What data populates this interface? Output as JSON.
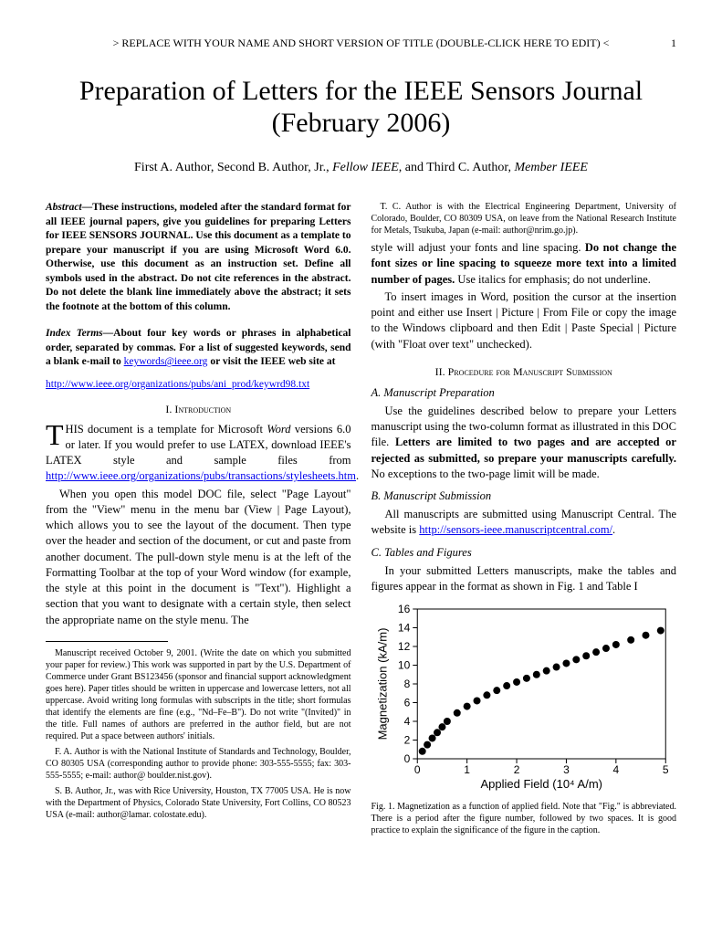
{
  "header": {
    "text": "> REPLACE WITH YOUR NAME AND SHORT VERSION OF TITLE (DOUBLE-CLICK HERE TO EDIT) <",
    "page": "1"
  },
  "title": "Preparation of Letters for the IEEE Sensors Journal (February 2006)",
  "authors": {
    "a1": "First A. Author, Second B. Author, Jr., ",
    "a2": "Fellow IEEE",
    "a3": ", and Third C. Author, ",
    "a4": "Member IEEE"
  },
  "abstract": {
    "label": "Abstract",
    "dash": "—",
    "text": "These instructions, modeled after the standard format for all IEEE journal papers, give you guidelines for preparing Letters for IEEE SENSORS JOURNAL. Use this document as a template to prepare your manuscript if you are using Microsoft Word 6.0. Otherwise, use this document as an instruction set. Define all symbols used in the abstract. Do not cite references in the abstract. Do not delete the blank line immediately above the abstract; it sets the footnote at the bottom of this column."
  },
  "index_terms": {
    "label": "Index Terms",
    "dash": "—",
    "text": "About four key words or phrases in alphabetical order, separated by commas. For a list of suggested keywords, send a blank e-mail to ",
    "email": "keywords@ieee.org",
    "text2": " or visit the IEEE web site at",
    "url": "http://www.ieee.org/organizations/pubs/ani_prod/keywrd98.txt"
  },
  "sec1": {
    "head": "I.   Introduction",
    "p1a": "HIS document is a template for Microsoft ",
    "p1b": "Word",
    "p1c": " versions 6.0 or later. If you would prefer to use LATEX, download IEEE's LATEX style and sample files from ",
    "link1": "http://www.ieee.org/organizations/pubs/transactions/stylesheets.htm",
    "p1d": ".",
    "p2": "When you open this model DOC file, select \"Page Layout\" from the \"View\" menu in the menu bar (View | Page Layout), which allows you to see the layout of the document. Then type over the header and section of the document, or cut and paste from another document. The pull-down style menu is at the left of the Formatting Toolbar at the top of your Word window (for example, the style at this point in the document is \"Text\"). Highlight a section that you want to designate with a certain style, then select the appropriate name on the style menu. The"
  },
  "footnotes": {
    "f1": "Manuscript received October 9, 2001. (Write the date on which you submitted your paper for review.) This work was supported in part by the U.S. Department of Commerce under Grant BS123456 (sponsor and financial support acknowledgment goes here). Paper titles should be written in uppercase and lowercase letters, not all uppercase. Avoid writing long formulas with subscripts in the title; short formulas that identify the elements are fine (e.g., \"Nd–Fe–B\"). Do not write \"(Invited)\" in the title. Full names of authors are preferred in the author field, but are not required. Put a space between authors' initials.",
    "f2": "F. A. Author is with the National Institute of Standards and Technology, Boulder, CO 80305 USA (corresponding author to provide phone: 303-555-5555; fax: 303-555-5555; e-mail: author@ boulder.nist.gov).",
    "f3": "S. B. Author, Jr., was with Rice University, Houston, TX 77005 USA. He is now with the Department of Physics, Colorado State University, Fort Collins, CO 80523 USA (e-mail: author@lamar. colostate.edu).",
    "f4": "T. C. Author is with the Electrical Engineering Department, University of Colorado, Boulder, CO 80309 USA, on leave from the National Research Institute for Metals, Tsukuba, Japan (e-mail: author@nrim.go.jp)."
  },
  "col2": {
    "p1a": "style will adjust your fonts and line spacing. ",
    "p1b": "Do not change the font sizes or line spacing to squeeze more text into a limited number of pages.",
    "p1c": " Use italics for emphasis; do not underline.",
    "p2": "To insert images in Word, position the cursor at the insertion point and either use Insert | Picture | From File or copy the image to the Windows clipboard and then Edit | Paste Special | Picture (with \"Float over text\" unchecked)."
  },
  "sec2": {
    "head": "II.   Procedure for Manuscript Submission",
    "subA": "A.  Manuscript Preparation",
    "pA1a": "Use the guidelines described below to prepare your Letters manuscript using the two-column format as illustrated in this DOC file.  ",
    "pA1b": "Letters are limited to two pages and are accepted or rejected as submitted, so prepare your manuscripts carefully.",
    "pA1c": " No exceptions to the two-page limit will be made.",
    "subB": "B.  Manuscript Submission",
    "pB1a": "All manuscripts are submitted using Manuscript Central. The website is ",
    "pB1link": "http://sensors-ieee.manuscriptcentral.com/",
    "pB1b": ".",
    "subC": "C.  Tables and Figures",
    "pC1": "In your submitted Letters manuscripts, make the tables and figures appear in the format as shown in Fig. 1 and Table I"
  },
  "figure1": {
    "caption": "Fig. 1.  Magnetization as a function of applied field. Note that \"Fig.\" is abbreviated. There is a period after the figure number, followed by two spaces. It is good practice to explain the significance of the figure in the caption.",
    "chart": {
      "type": "scatter",
      "xlabel": "Applied Field (10⁴ A/m)",
      "ylabel": "Magnetization (kA/m)",
      "xlim": [
        0,
        5
      ],
      "ylim": [
        0,
        16
      ],
      "xtick_step": 1,
      "ytick_step": 2,
      "marker": "circle",
      "marker_color": "#000000",
      "marker_size": 4,
      "background_color": "#ffffff",
      "axis_color": "#000000",
      "label_fontsize": 13,
      "tick_fontsize": 12,
      "data_x": [
        0.1,
        0.2,
        0.3,
        0.4,
        0.5,
        0.6,
        0.8,
        1.0,
        1.2,
        1.4,
        1.6,
        1.8,
        2.0,
        2.2,
        2.4,
        2.6,
        2.8,
        3.0,
        3.2,
        3.4,
        3.6,
        3.8,
        4.0,
        4.3,
        4.6,
        4.9
      ],
      "data_y": [
        0.8,
        1.5,
        2.2,
        2.8,
        3.4,
        4.0,
        4.9,
        5.6,
        6.2,
        6.8,
        7.3,
        7.8,
        8.2,
        8.6,
        9.0,
        9.4,
        9.8,
        10.2,
        10.6,
        11.0,
        11.4,
        11.8,
        12.2,
        12.7,
        13.2,
        13.7
      ]
    }
  }
}
